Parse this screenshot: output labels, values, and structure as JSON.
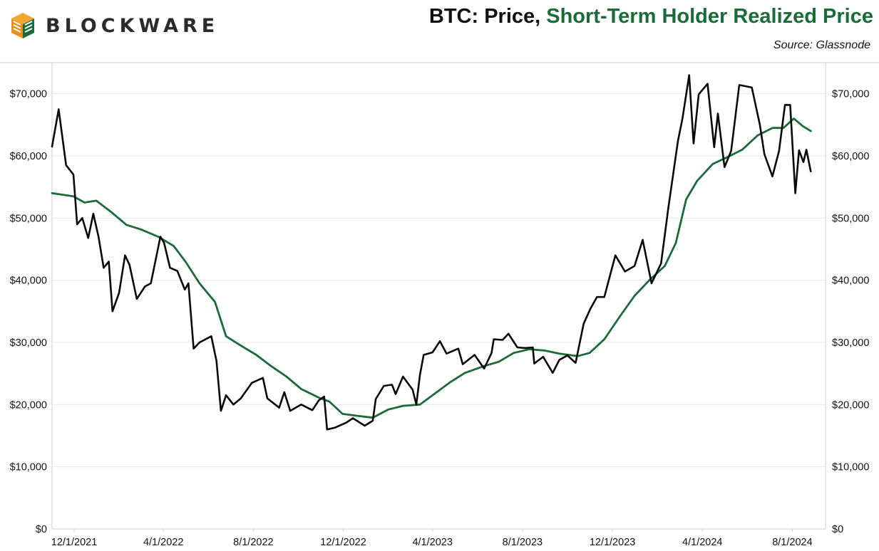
{
  "brand": {
    "name": "BLOCKWARE",
    "logo_colors": [
      "#f2a72e",
      "#e8911d",
      "#1b6b3a",
      "#2f8a4d"
    ]
  },
  "header": {
    "title_prefix": "BTC: Price, ",
    "title_series": "Short-Term Holder Realized Price",
    "source": "Source: Glassnode"
  },
  "colors": {
    "price": "#0a0a0a",
    "sth_realized_price": "#1b6b3a",
    "grid": "#e8e8e8",
    "axis": "#cfcfcf"
  },
  "chart_data": {
    "type": "line",
    "title": "BTC: Price, Short-Term Holder Realized Price",
    "xlabel": "",
    "ylabel": "",
    "xlim": [
      "2021-11-01",
      "2024-09-15"
    ],
    "ylim": [
      0,
      75000
    ],
    "grid": true,
    "y_axes": "both sides",
    "yticks": [
      0,
      10000,
      20000,
      30000,
      40000,
      50000,
      60000,
      70000
    ],
    "ytick_labels": [
      "$0",
      "$10,000",
      "$20,000",
      "$30,000",
      "$40,000",
      "$50,000",
      "$60,000",
      "$70,000"
    ],
    "xticks": [
      "2021-12-01",
      "2022-04-01",
      "2022-08-01",
      "2022-12-01",
      "2023-04-01",
      "2023-08-01",
      "2023-12-01",
      "2024-04-01",
      "2024-08-01"
    ],
    "xtick_labels": [
      "12/1/2021",
      "4/1/2022",
      "8/1/2022",
      "12/1/2022",
      "4/1/2023",
      "8/1/2023",
      "12/1/2023",
      "4/1/2024",
      "8/1/2024"
    ],
    "series": [
      {
        "name": "Price",
        "color": "#0a0a0a",
        "points": [
          [
            "2021-11-01",
            61500
          ],
          [
            "2021-11-10",
            67500
          ],
          [
            "2021-11-20",
            58500
          ],
          [
            "2021-11-30",
            57000
          ],
          [
            "2021-12-05",
            49000
          ],
          [
            "2021-12-12",
            50000
          ],
          [
            "2021-12-20",
            46800
          ],
          [
            "2021-12-27",
            50700
          ],
          [
            "2022-01-03",
            47000
          ],
          [
            "2022-01-10",
            42000
          ],
          [
            "2022-01-17",
            43000
          ],
          [
            "2022-01-22",
            35000
          ],
          [
            "2022-01-31",
            38000
          ],
          [
            "2022-02-08",
            44000
          ],
          [
            "2022-02-14",
            42500
          ],
          [
            "2022-02-24",
            37000
          ],
          [
            "2022-03-07",
            39000
          ],
          [
            "2022-03-15",
            39500
          ],
          [
            "2022-03-28",
            47000
          ],
          [
            "2022-04-02",
            46000
          ],
          [
            "2022-04-10",
            42000
          ],
          [
            "2022-04-20",
            41500
          ],
          [
            "2022-04-30",
            38500
          ],
          [
            "2022-05-05",
            39500
          ],
          [
            "2022-05-12",
            29000
          ],
          [
            "2022-05-20",
            30000
          ],
          [
            "2022-06-05",
            31000
          ],
          [
            "2022-06-12",
            27000
          ],
          [
            "2022-06-18",
            19000
          ],
          [
            "2022-06-25",
            21500
          ],
          [
            "2022-07-05",
            20000
          ],
          [
            "2022-07-15",
            21000
          ],
          [
            "2022-07-30",
            23500
          ],
          [
            "2022-08-14",
            24300
          ],
          [
            "2022-08-20",
            21000
          ],
          [
            "2022-09-05",
            19500
          ],
          [
            "2022-09-12",
            22000
          ],
          [
            "2022-09-20",
            19000
          ],
          [
            "2022-10-05",
            20000
          ],
          [
            "2022-10-20",
            19100
          ],
          [
            "2022-10-29",
            20700
          ],
          [
            "2022-11-05",
            21300
          ],
          [
            "2022-11-09",
            16000
          ],
          [
            "2022-11-20",
            16300
          ],
          [
            "2022-12-05",
            17100
          ],
          [
            "2022-12-14",
            17800
          ],
          [
            "2022-12-30",
            16600
          ],
          [
            "2023-01-10",
            17400
          ],
          [
            "2023-01-14",
            20900
          ],
          [
            "2023-01-25",
            23000
          ],
          [
            "2023-02-05",
            23200
          ],
          [
            "2023-02-10",
            21700
          ],
          [
            "2023-02-20",
            24500
          ],
          [
            "2023-03-05",
            22400
          ],
          [
            "2023-03-10",
            20000
          ],
          [
            "2023-03-15",
            24800
          ],
          [
            "2023-03-20",
            28000
          ],
          [
            "2023-04-01",
            28400
          ],
          [
            "2023-04-11",
            30200
          ],
          [
            "2023-04-20",
            28200
          ],
          [
            "2023-05-06",
            29000
          ],
          [
            "2023-05-12",
            26500
          ],
          [
            "2023-05-28",
            28000
          ],
          [
            "2023-06-10",
            25800
          ],
          [
            "2023-06-20",
            28300
          ],
          [
            "2023-06-23",
            30500
          ],
          [
            "2023-07-05",
            30400
          ],
          [
            "2023-07-13",
            31400
          ],
          [
            "2023-07-25",
            29200
          ],
          [
            "2023-08-05",
            29100
          ],
          [
            "2023-08-15",
            29200
          ],
          [
            "2023-08-17",
            26600
          ],
          [
            "2023-08-29",
            27700
          ],
          [
            "2023-09-11",
            25100
          ],
          [
            "2023-09-20",
            27200
          ],
          [
            "2023-10-01",
            27900
          ],
          [
            "2023-10-12",
            26700
          ],
          [
            "2023-10-23",
            33000
          ],
          [
            "2023-11-01",
            35400
          ],
          [
            "2023-11-10",
            37300
          ],
          [
            "2023-11-20",
            37300
          ],
          [
            "2023-12-05",
            44000
          ],
          [
            "2023-12-18",
            41400
          ],
          [
            "2023-12-31",
            42300
          ],
          [
            "2024-01-11",
            46500
          ],
          [
            "2024-01-23",
            39500
          ],
          [
            "2024-02-05",
            42700
          ],
          [
            "2024-02-15",
            51800
          ],
          [
            "2024-02-28",
            62500
          ],
          [
            "2024-03-05",
            66000
          ],
          [
            "2024-03-14",
            73000
          ],
          [
            "2024-03-20",
            62000
          ],
          [
            "2024-03-27",
            69900
          ],
          [
            "2024-04-08",
            71600
          ],
          [
            "2024-04-17",
            61400
          ],
          [
            "2024-04-22",
            66800
          ],
          [
            "2024-05-01",
            58200
          ],
          [
            "2024-05-10",
            60800
          ],
          [
            "2024-05-21",
            71400
          ],
          [
            "2024-06-07",
            71000
          ],
          [
            "2024-06-18",
            65000
          ],
          [
            "2024-06-24",
            60300
          ],
          [
            "2024-07-05",
            56700
          ],
          [
            "2024-07-14",
            60800
          ],
          [
            "2024-07-22",
            68200
          ],
          [
            "2024-07-29",
            68200
          ],
          [
            "2024-08-05",
            54000
          ],
          [
            "2024-08-10",
            60900
          ],
          [
            "2024-08-16",
            59000
          ],
          [
            "2024-08-20",
            61000
          ],
          [
            "2024-08-26",
            57500
          ]
        ]
      },
      {
        "name": "Short-Term Holder Realized Price",
        "color": "#1b6b3a",
        "points": [
          [
            "2021-11-01",
            54000
          ],
          [
            "2021-11-30",
            53500
          ],
          [
            "2021-12-15",
            52500
          ],
          [
            "2021-12-31",
            52800
          ],
          [
            "2022-01-20",
            51000
          ],
          [
            "2022-02-10",
            48900
          ],
          [
            "2022-03-01",
            48200
          ],
          [
            "2022-03-25",
            47000
          ],
          [
            "2022-04-15",
            45500
          ],
          [
            "2022-05-01",
            43000
          ],
          [
            "2022-05-20",
            39500
          ],
          [
            "2022-06-10",
            36500
          ],
          [
            "2022-06-25",
            31000
          ],
          [
            "2022-07-15",
            29500
          ],
          [
            "2022-08-05",
            28000
          ],
          [
            "2022-08-25",
            26200
          ],
          [
            "2022-09-15",
            24500
          ],
          [
            "2022-10-05",
            22500
          ],
          [
            "2022-10-31",
            21000
          ],
          [
            "2022-11-12",
            20500
          ],
          [
            "2022-11-30",
            18500
          ],
          [
            "2022-12-20",
            18200
          ],
          [
            "2023-01-10",
            17900
          ],
          [
            "2023-01-31",
            19200
          ],
          [
            "2023-02-20",
            19800
          ],
          [
            "2023-03-15",
            20000
          ],
          [
            "2023-04-01",
            21500
          ],
          [
            "2023-04-25",
            23600
          ],
          [
            "2023-05-15",
            25100
          ],
          [
            "2023-06-10",
            26200
          ],
          [
            "2023-06-30",
            26900
          ],
          [
            "2023-07-20",
            28300
          ],
          [
            "2023-08-10",
            28900
          ],
          [
            "2023-08-31",
            28700
          ],
          [
            "2023-09-20",
            28200
          ],
          [
            "2023-10-15",
            27800
          ],
          [
            "2023-10-31",
            28300
          ],
          [
            "2023-11-20",
            30500
          ],
          [
            "2023-12-10",
            34000
          ],
          [
            "2023-12-31",
            37500
          ],
          [
            "2024-01-20",
            40000
          ],
          [
            "2024-02-10",
            42300
          ],
          [
            "2024-02-25",
            46000
          ],
          [
            "2024-03-10",
            53000
          ],
          [
            "2024-03-25",
            56000
          ],
          [
            "2024-04-15",
            58700
          ],
          [
            "2024-05-05",
            59800
          ],
          [
            "2024-05-25",
            61000
          ],
          [
            "2024-06-15",
            63300
          ],
          [
            "2024-07-05",
            64500
          ],
          [
            "2024-07-20",
            64500
          ],
          [
            "2024-08-03",
            66000
          ],
          [
            "2024-08-15",
            64800
          ],
          [
            "2024-08-26",
            64000
          ]
        ]
      }
    ]
  }
}
